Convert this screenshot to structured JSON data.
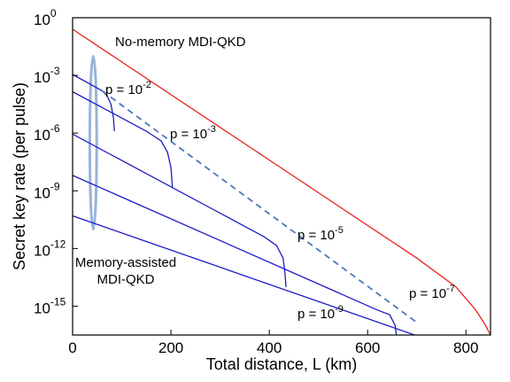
{
  "chart_data": {
    "type": "line",
    "xlabel": "Total distance, L (km)",
    "ylabel": "Secret key rate  (per pulse)",
    "xlim": [
      0,
      850
    ],
    "ylim_log10": [
      -16.5,
      0
    ],
    "y_scale": "log",
    "grid": false,
    "x_ticks": [
      {
        "value": 0,
        "label": "0"
      },
      {
        "value": 200,
        "label": "200"
      },
      {
        "value": 400,
        "label": "400"
      },
      {
        "value": 600,
        "label": "600"
      },
      {
        "value": 800,
        "label": "800"
      }
    ],
    "y_ticks": [
      {
        "exp": 0,
        "base": "10",
        "sup": "0"
      },
      {
        "exp": -3,
        "base": "10",
        "sup": "-3"
      },
      {
        "exp": -6,
        "base": "10",
        "sup": "-6"
      },
      {
        "exp": -9,
        "base": "10",
        "sup": "-9"
      },
      {
        "exp": -12,
        "base": "10",
        "sup": "-12"
      },
      {
        "exp": -15,
        "base": "10",
        "sup": "-15"
      }
    ],
    "colors": {
      "no_memory": "#e8221c",
      "memory": "#1c1cc8",
      "envelope": "#4a78b8",
      "ellipse": "#9ab4d8"
    },
    "series": [
      {
        "label_key": "no_memory",
        "color_key": "no_memory",
        "points": [
          [
            0,
            -0.6
          ],
          [
            700,
            -12.5
          ],
          [
            780,
            -14.0
          ],
          [
            820,
            -15.2
          ],
          [
            840,
            -16.0
          ],
          [
            850,
            -16.5
          ]
        ]
      },
      {
        "label_key": "p2",
        "color_key": "memory",
        "points": [
          [
            0,
            -2.95
          ],
          [
            60,
            -3.8
          ],
          [
            70,
            -4.05
          ],
          [
            78,
            -4.5
          ],
          [
            83,
            -5.2
          ],
          [
            85,
            -5.9
          ]
        ]
      },
      {
        "label_key": "p3",
        "color_key": "memory",
        "points": [
          [
            0,
            -3.85
          ],
          [
            150,
            -5.9
          ],
          [
            180,
            -6.4
          ],
          [
            193,
            -7.0
          ],
          [
            200,
            -7.8
          ],
          [
            203,
            -8.8
          ]
        ]
      },
      {
        "label_key": "p5",
        "color_key": "memory",
        "points": [
          [
            0,
            -6.05
          ],
          [
            390,
            -11.4
          ],
          [
            415,
            -11.85
          ],
          [
            428,
            -12.5
          ],
          [
            432,
            -13.3
          ],
          [
            434,
            -14.0
          ]
        ]
      },
      {
        "label_key": "p7",
        "color_key": "memory",
        "points": [
          [
            0,
            -8.2
          ],
          [
            620,
            -15.2
          ],
          [
            645,
            -15.45
          ],
          [
            656,
            -16.0
          ],
          [
            659,
            -16.6
          ]
        ]
      },
      {
        "label_key": "p9",
        "color_key": "memory",
        "points": [
          [
            0,
            -10.3
          ],
          [
            707,
            -16.6
          ]
        ]
      },
      {
        "label_key": "envelope",
        "color_key": "envelope",
        "dashed": true,
        "points": [
          [
            60,
            -3.8
          ],
          [
            703,
            -15.9
          ]
        ]
      }
    ],
    "ellipse": {
      "center": [
        42,
        -6.5
      ],
      "half_width_x": 7,
      "half_height_log10": 4.5
    },
    "annotations": {
      "no_memory": {
        "text": "No-memory MDI-QKD"
      },
      "memory_assisted": {
        "line1": "Memory-assisted",
        "line2": "MDI-QKD"
      },
      "p2": {
        "base": "p = 10",
        "sup": "-2"
      },
      "p3": {
        "base": "p = 10",
        "sup": "-3"
      },
      "p5": {
        "base": "p = 10",
        "sup": "-5"
      },
      "p7": {
        "base": "p = 10",
        "sup": "-7"
      },
      "p9": {
        "base": "p = 10",
        "sup": "-9"
      }
    }
  }
}
